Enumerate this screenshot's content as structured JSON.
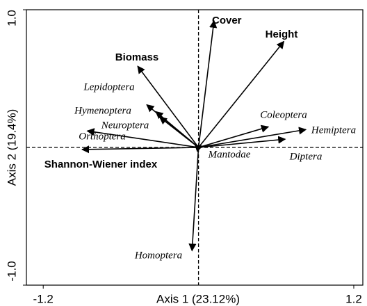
{
  "chart_data": {
    "type": "biplot",
    "xlabel": "Axis 1 (23.12%)",
    "ylabel": "Axis 2 (19.4%)",
    "xlim": [
      -1.33,
      1.27
    ],
    "ylim": [
      -1,
      1
    ],
    "xticks": [
      -1.2,
      1.2
    ],
    "yticks": [
      {
        "value": -1,
        "label": "-1.0"
      },
      {
        "value": 1,
        "label": "1.0"
      }
    ],
    "variables": [
      {
        "name": "Cover",
        "x": 0.12,
        "y": 0.92
      },
      {
        "name": "Height",
        "x": 0.66,
        "y": 0.77
      },
      {
        "name": "Biomass",
        "x": -0.47,
        "y": 0.59
      },
      {
        "name": "Shannon-Wiener index",
        "x": -0.9,
        "y": -0.015
      }
    ],
    "taxa": [
      {
        "name": "Lepidoptera",
        "x": -0.4,
        "y": 0.31
      },
      {
        "name": "Hymenoptera",
        "x": -0.3,
        "y": 0.22
      },
      {
        "name": "Neuroptera",
        "x": -0.33,
        "y": 0.26
      },
      {
        "name": "Orthoptera",
        "x": -0.86,
        "y": 0.12
      },
      {
        "name": "Coleoptera",
        "x": 0.54,
        "y": 0.15
      },
      {
        "name": "Hemiptera",
        "x": 0.83,
        "y": 0.13
      },
      {
        "name": "Diptera",
        "x": 0.67,
        "y": 0.06
      },
      {
        "name": "Mantodae",
        "x": 0.03,
        "y": 0.01
      },
      {
        "name": "Homoptera",
        "x": -0.05,
        "y": -0.75
      }
    ]
  }
}
